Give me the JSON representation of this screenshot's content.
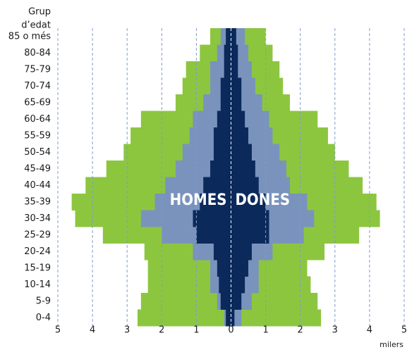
{
  "chart_data": {
    "type": "pyramid",
    "ylabel": [
      "Grup",
      "d’edat"
    ],
    "xlabel": "milers",
    "annotations": [
      "HOMES",
      "DONES"
    ],
    "categories": [
      "85 o més",
      "80-84",
      "75-79",
      "70-74",
      "65-69",
      "60-64",
      "55-59",
      "50-54",
      "45-49",
      "40-44",
      "35-39",
      "30-34",
      "25-29",
      "20-24",
      "15-19",
      "10-14",
      "5-9",
      "0-4"
    ],
    "series": [
      {
        "color": "#8cc63f",
        "values": [
          -0.6,
          -0.9,
          -1.3,
          -1.4,
          -1.6,
          -2.6,
          -2.9,
          -3.1,
          -3.6,
          -4.2,
          -4.6,
          -4.5,
          -3.7,
          -2.5,
          -2.4,
          -2.4,
          -2.6,
          -2.7
        ]
      },
      {
        "color": "#8cc63f",
        "values": [
          1.0,
          1.2,
          1.4,
          1.5,
          1.7,
          2.5,
          2.8,
          3.0,
          3.4,
          3.8,
          4.2,
          4.3,
          3.7,
          2.7,
          2.2,
          2.3,
          2.5,
          2.6
        ]
      },
      {
        "color": "#7a93bd",
        "values": [
          -0.3,
          -0.4,
          -0.6,
          -0.6,
          -0.8,
          -1.1,
          -1.2,
          -1.4,
          -1.6,
          -1.9,
          -2.2,
          -2.6,
          -2.0,
          -1.1,
          -0.6,
          -0.6,
          -0.4,
          -0.2
        ]
      },
      {
        "color": "#7a93bd",
        "values": [
          0.4,
          0.5,
          0.6,
          0.7,
          0.9,
          1.1,
          1.2,
          1.4,
          1.6,
          1.7,
          2.2,
          2.4,
          2.1,
          1.2,
          0.8,
          0.8,
          0.6,
          0.3
        ]
      },
      {
        "color": "#0b2a5b",
        "values": [
          -0.15,
          -0.2,
          -0.2,
          -0.3,
          -0.3,
          -0.4,
          -0.5,
          -0.5,
          -0.6,
          -0.8,
          -0.9,
          -1.1,
          -1.0,
          -0.5,
          -0.4,
          -0.35,
          -0.3,
          -0.15
        ]
      },
      {
        "color": "#0b2a5b",
        "values": [
          0.15,
          0.2,
          0.2,
          0.3,
          0.3,
          0.4,
          0.5,
          0.6,
          0.7,
          0.8,
          1.0,
          1.1,
          1.1,
          0.6,
          0.5,
          0.4,
          0.3,
          0.1
        ]
      }
    ],
    "xlim": [
      -5,
      5
    ],
    "xticks": [
      {
        "value": -5,
        "label": "5"
      },
      {
        "value": -4,
        "label": "4"
      },
      {
        "value": -3,
        "label": "3"
      },
      {
        "value": -2,
        "label": "2"
      },
      {
        "value": -1,
        "label": "1"
      },
      0,
      1,
      2,
      3,
      4,
      5
    ],
    "grid": true,
    "grid_color": "#7f9ccc"
  }
}
